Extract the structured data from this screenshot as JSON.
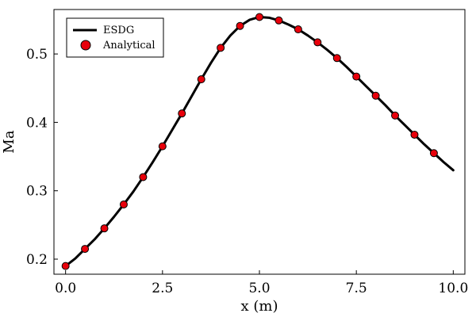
{
  "chart_data": {
    "type": "line",
    "xlabel": "x (m)",
    "ylabel": "Ma",
    "xlim": [
      -0.3,
      10.3
    ],
    "ylim": [
      0.178,
      0.565
    ],
    "xticks": [
      0.0,
      2.5,
      5.0,
      7.5,
      10.0
    ],
    "xtick_labels": [
      "0.0",
      "2.5",
      "5.0",
      "7.5",
      "10.0"
    ],
    "yticks": [
      0.2,
      0.3,
      0.4,
      0.5
    ],
    "ytick_labels": [
      "0.2",
      "0.3",
      "0.4",
      "0.5"
    ],
    "grid": false,
    "legend_position": "top-left",
    "series": [
      {
        "name": "ESDG",
        "kind": "line",
        "color": "#000000",
        "x": [
          0.0,
          0.25,
          0.5,
          0.75,
          1.0,
          1.25,
          1.5,
          1.75,
          2.0,
          2.25,
          2.5,
          2.75,
          3.0,
          3.25,
          3.5,
          3.75,
          4.0,
          4.25,
          4.5,
          4.75,
          5.0,
          5.25,
          5.5,
          5.75,
          6.0,
          6.25,
          6.5,
          6.75,
          7.0,
          7.25,
          7.5,
          7.75,
          8.0,
          8.25,
          8.5,
          8.75,
          9.0,
          9.25,
          9.5,
          9.75,
          10.0
        ],
        "y": [
          0.19,
          0.201,
          0.215,
          0.229,
          0.245,
          0.262,
          0.28,
          0.299,
          0.32,
          0.342,
          0.365,
          0.389,
          0.413,
          0.438,
          0.463,
          0.487,
          0.509,
          0.527,
          0.541,
          0.55,
          0.554,
          0.553,
          0.549,
          0.543,
          0.536,
          0.527,
          0.517,
          0.506,
          0.494,
          0.481,
          0.467,
          0.453,
          0.439,
          0.425,
          0.41,
          0.396,
          0.382,
          0.368,
          0.355,
          0.342,
          0.33
        ]
      },
      {
        "name": "Analytical",
        "kind": "scatter",
        "color": "#e8000b",
        "x": [
          0.0,
          0.5,
          1.0,
          1.5,
          2.0,
          2.5,
          3.0,
          3.5,
          4.0,
          4.5,
          5.0,
          5.5,
          6.0,
          6.5,
          7.0,
          7.5,
          8.0,
          8.5,
          9.0,
          9.5
        ],
        "y": [
          0.19,
          0.215,
          0.245,
          0.28,
          0.32,
          0.365,
          0.413,
          0.463,
          0.509,
          0.541,
          0.554,
          0.549,
          0.536,
          0.517,
          0.494,
          0.467,
          0.439,
          0.41,
          0.382,
          0.355
        ]
      }
    ]
  }
}
